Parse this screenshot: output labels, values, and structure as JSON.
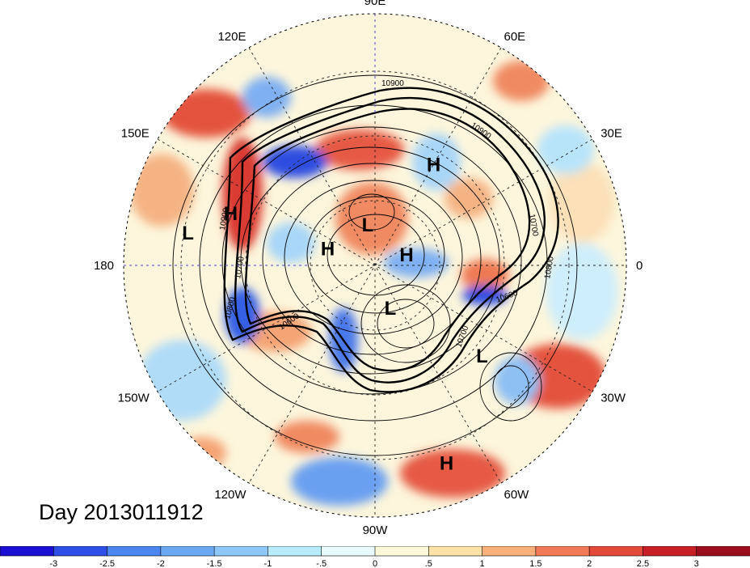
{
  "title": "Day 2013011912",
  "longitude_labels": [
    {
      "text": "90E",
      "lon": 90
    },
    {
      "text": "60E",
      "lon": 60
    },
    {
      "text": "30E",
      "lon": 30
    },
    {
      "text": "0",
      "lon": 0
    },
    {
      "text": "30W",
      "lon": -30
    },
    {
      "text": "60W",
      "lon": -60
    },
    {
      "text": "90W",
      "lon": -90
    },
    {
      "text": "120W",
      "lon": -120
    },
    {
      "text": "150W",
      "lon": -150
    },
    {
      "text": "180",
      "lon": 180
    },
    {
      "text": "150E",
      "lon": 150
    },
    {
      "text": "120E",
      "lon": 120
    }
  ],
  "pressure_centers": [
    {
      "type": "H",
      "lon": 60,
      "lat": 48
    },
    {
      "type": "L",
      "lon": 170,
      "lat": 22
    },
    {
      "type": "H",
      "lon": 160,
      "lat": 35
    },
    {
      "type": "L",
      "lon": 100,
      "lat": 75
    },
    {
      "type": "H",
      "lon": 160,
      "lat": 72
    },
    {
      "type": "H",
      "lon": 20,
      "lat": 78
    },
    {
      "type": "L",
      "lon": -70,
      "lat": 74
    },
    {
      "type": "L",
      "lon": -40,
      "lat": 40
    },
    {
      "type": "H",
      "lon": -70,
      "lat": 15
    }
  ],
  "contour_labels": [
    "10900",
    "10900",
    "10900",
    "10800",
    "10700",
    "10600",
    "10700",
    "10800",
    "10600",
    "10700"
  ],
  "colorbar": {
    "labels": [
      "-3",
      "-2.5",
      "-2",
      "-1.5",
      "-1",
      "-.5",
      "0",
      ".5",
      "1",
      "1.5",
      "2",
      "2.5",
      "3"
    ],
    "colors": [
      "#1c0fd4",
      "#2d4fe6",
      "#4a86ee",
      "#6aa8f4",
      "#8ec8fa",
      "#b8ecfc",
      "#e8fafd",
      "#fdf8d8",
      "#fde3a8",
      "#f9b07a",
      "#f07a55",
      "#e44a3a",
      "#c62026",
      "#9b0e1d"
    ]
  }
}
